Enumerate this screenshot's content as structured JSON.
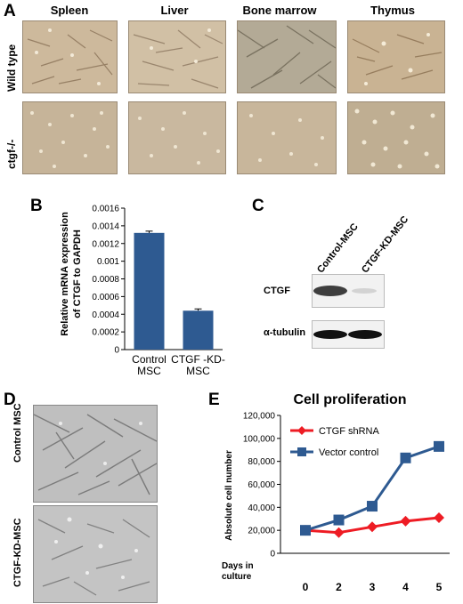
{
  "panel_A": {
    "letter": "A",
    "columns": [
      "Spleen",
      "Liver",
      "Bone marrow",
      "Thymus"
    ],
    "rows": [
      "Wild type",
      "ctgf-/-"
    ]
  },
  "panel_B": {
    "letter": "B"
  },
  "panel_C": {
    "letter": "C",
    "lanes": [
      "Control-MSC",
      "CTGF-KD-MSC"
    ],
    "proteins": [
      "CTGF",
      "α-tubulin"
    ]
  },
  "panel_D": {
    "letter": "D",
    "rows": [
      "Control MSC",
      "CTGF-KD-MSC"
    ]
  },
  "panel_E": {
    "letter": "E"
  },
  "chart_data": [
    {
      "type": "bar",
      "panel": "B",
      "title": "",
      "ylabel": "Relative mRNA expression of CTGF to GAPDH",
      "ylabel_lines": [
        "Relative mRNA expression",
        "of CTGF to GAPDH"
      ],
      "xlabel": "",
      "categories": [
        "Control MSC",
        "CTGF -KD-MSC"
      ],
      "category_lines": [
        [
          "Control",
          "MSC"
        ],
        [
          "CTGF -KD-",
          "MSC"
        ]
      ],
      "values": [
        0.00132,
        0.00044
      ],
      "errors": [
        2e-05,
        2e-05
      ],
      "ylim": [
        0,
        0.0016
      ],
      "yticks": [
        "0",
        "0.0002",
        "0.0004",
        "0.0006",
        "0.0008",
        "0.001",
        "0.0012",
        "0.0014",
        "0.0016"
      ],
      "bar_color": "#2e5a91",
      "grid": false
    },
    {
      "type": "line",
      "panel": "E",
      "title": "Cell proliferation",
      "ylabel": "Absolute cell number",
      "xlabel_lines": [
        "Days in",
        "culture"
      ],
      "x": [
        "0",
        "2",
        "3",
        "4",
        "5"
      ],
      "ylim": [
        0,
        120000
      ],
      "yticks": [
        "0",
        "20,000",
        "40,000",
        "60,000",
        "80,000",
        "100,000",
        "120,000"
      ],
      "legend_position": "top-left",
      "grid": false,
      "series": [
        {
          "name": "CTGF shRNA",
          "values": [
            20000,
            18000,
            23000,
            28000,
            31000
          ],
          "color": "#ee1c24",
          "marker": "diamond"
        },
        {
          "name": "Vector control",
          "values": [
            20000,
            29000,
            41000,
            83000,
            93000
          ],
          "color": "#2e5a91",
          "marker": "square"
        }
      ]
    }
  ]
}
